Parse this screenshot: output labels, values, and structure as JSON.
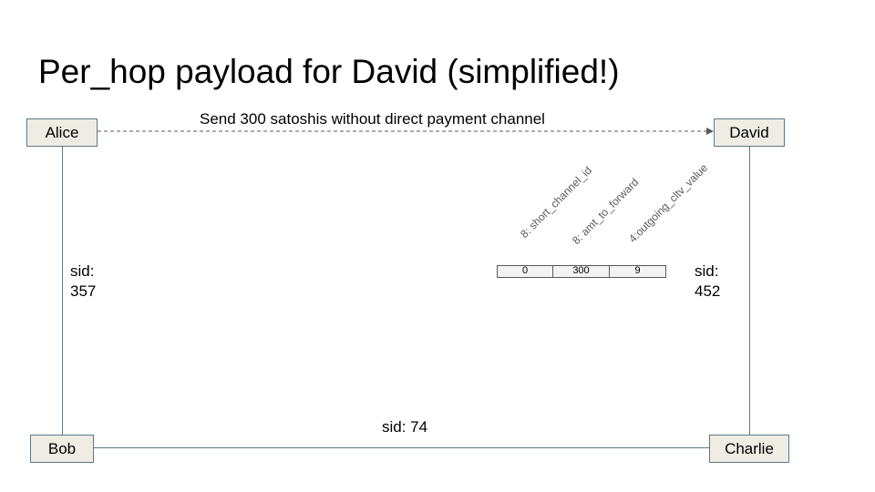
{
  "title": "Per_hop payload for David (simplified!)",
  "nodes": {
    "alice": "Alice",
    "david": "David",
    "bob": "Bob",
    "charlie": "Charlie"
  },
  "edges": {
    "send_label": "Send 300 satoshis without direct payment channel",
    "alice_bob_sid": "sid:\n357",
    "david_charlie_sid": "sid:\n452",
    "bob_charlie_sid": "sid: 74"
  },
  "payload": {
    "fields": [
      {
        "name": "8: short_channel_id",
        "value": "0"
      },
      {
        "name": "8: amt_to_forward",
        "value": "300"
      },
      {
        "name": "4:outgoing_cltv_value",
        "value": "9"
      }
    ]
  },
  "colors": {
    "node_fill": "#eeece3",
    "node_border": "#5f7889",
    "field_fill": "#f3f3f3"
  }
}
